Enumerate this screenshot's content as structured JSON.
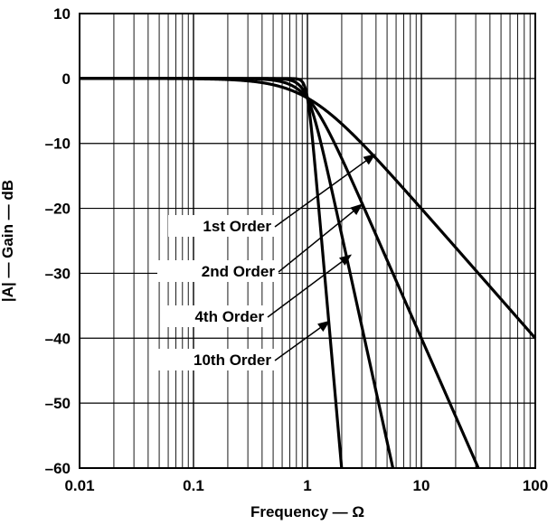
{
  "chart_data": {
    "type": "line",
    "xlabel": "Frequency — Ω",
    "ylabel": "|A| — Gain — dB",
    "xscale": "log",
    "xlim": [
      0.01,
      100
    ],
    "ylim": [
      -60,
      10
    ],
    "grid": true,
    "x_ticks": [
      0.01,
      0.1,
      1,
      10,
      100
    ],
    "x_tick_labels": [
      "0.01",
      "0.1",
      "1",
      "10",
      "100"
    ],
    "y_ticks": [
      10,
      0,
      -10,
      -20,
      -30,
      -40,
      -50,
      -60
    ],
    "y_tick_labels": [
      "10",
      "0",
      "–10",
      "–20",
      "–30",
      "–40",
      "–50",
      "–60"
    ],
    "series": [
      {
        "name": "1st Order",
        "order": 1,
        "x": [
          0.01,
          0.1,
          0.3,
          0.5,
          0.7,
          1,
          1.5,
          2,
          3,
          5,
          10,
          20,
          50,
          100
        ],
        "y": [
          0,
          -0.04,
          -0.37,
          -0.97,
          -1.74,
          -3.01,
          -5.12,
          -6.99,
          -10,
          -14.15,
          -20.04,
          -26.03,
          -33.98,
          -40
        ]
      },
      {
        "name": "2nd Order",
        "order": 2,
        "x": [
          0.01,
          0.1,
          0.3,
          0.5,
          0.7,
          1,
          1.5,
          2,
          3,
          5,
          10,
          20,
          37
        ],
        "y": [
          0,
          0,
          -0.04,
          -0.26,
          -0.9,
          -3.01,
          -7.4,
          -12.3,
          -19.1,
          -28,
          -40,
          -52,
          -60
        ]
      },
      {
        "name": "4th Order",
        "order": 4,
        "x": [
          0.01,
          0.1,
          0.5,
          0.7,
          0.85,
          1,
          1.2,
          1.5,
          2,
          3,
          4,
          5,
          6.2
        ],
        "y": [
          0,
          0,
          -0.02,
          -0.14,
          -0.66,
          -3.01,
          -7.3,
          -14.2,
          -24.1,
          -38.2,
          -48.2,
          -55.9,
          -60
        ]
      },
      {
        "name": "10th Order",
        "order": 10,
        "x": [
          0.01,
          0.1,
          0.5,
          0.8,
          0.9,
          1,
          1.1,
          1.2,
          1.3,
          1.5,
          1.7,
          1.9,
          2.05
        ],
        "y": [
          0,
          0,
          0,
          -0.05,
          -0.53,
          -3.01,
          -8.6,
          -15.9,
          -22.8,
          -35.2,
          -46.1,
          -55.8,
          -60
        ]
      }
    ],
    "annotations": [
      {
        "text": "1st Order",
        "target": [
          3.9,
          -11.7
        ]
      },
      {
        "text": "2nd Order",
        "target": [
          3.0,
          -19.4
        ]
      },
      {
        "text": "4th Order",
        "target": [
          2.4,
          -27.2
        ]
      },
      {
        "text": "10th Order",
        "target": [
          1.55,
          -37.4
        ]
      }
    ]
  }
}
